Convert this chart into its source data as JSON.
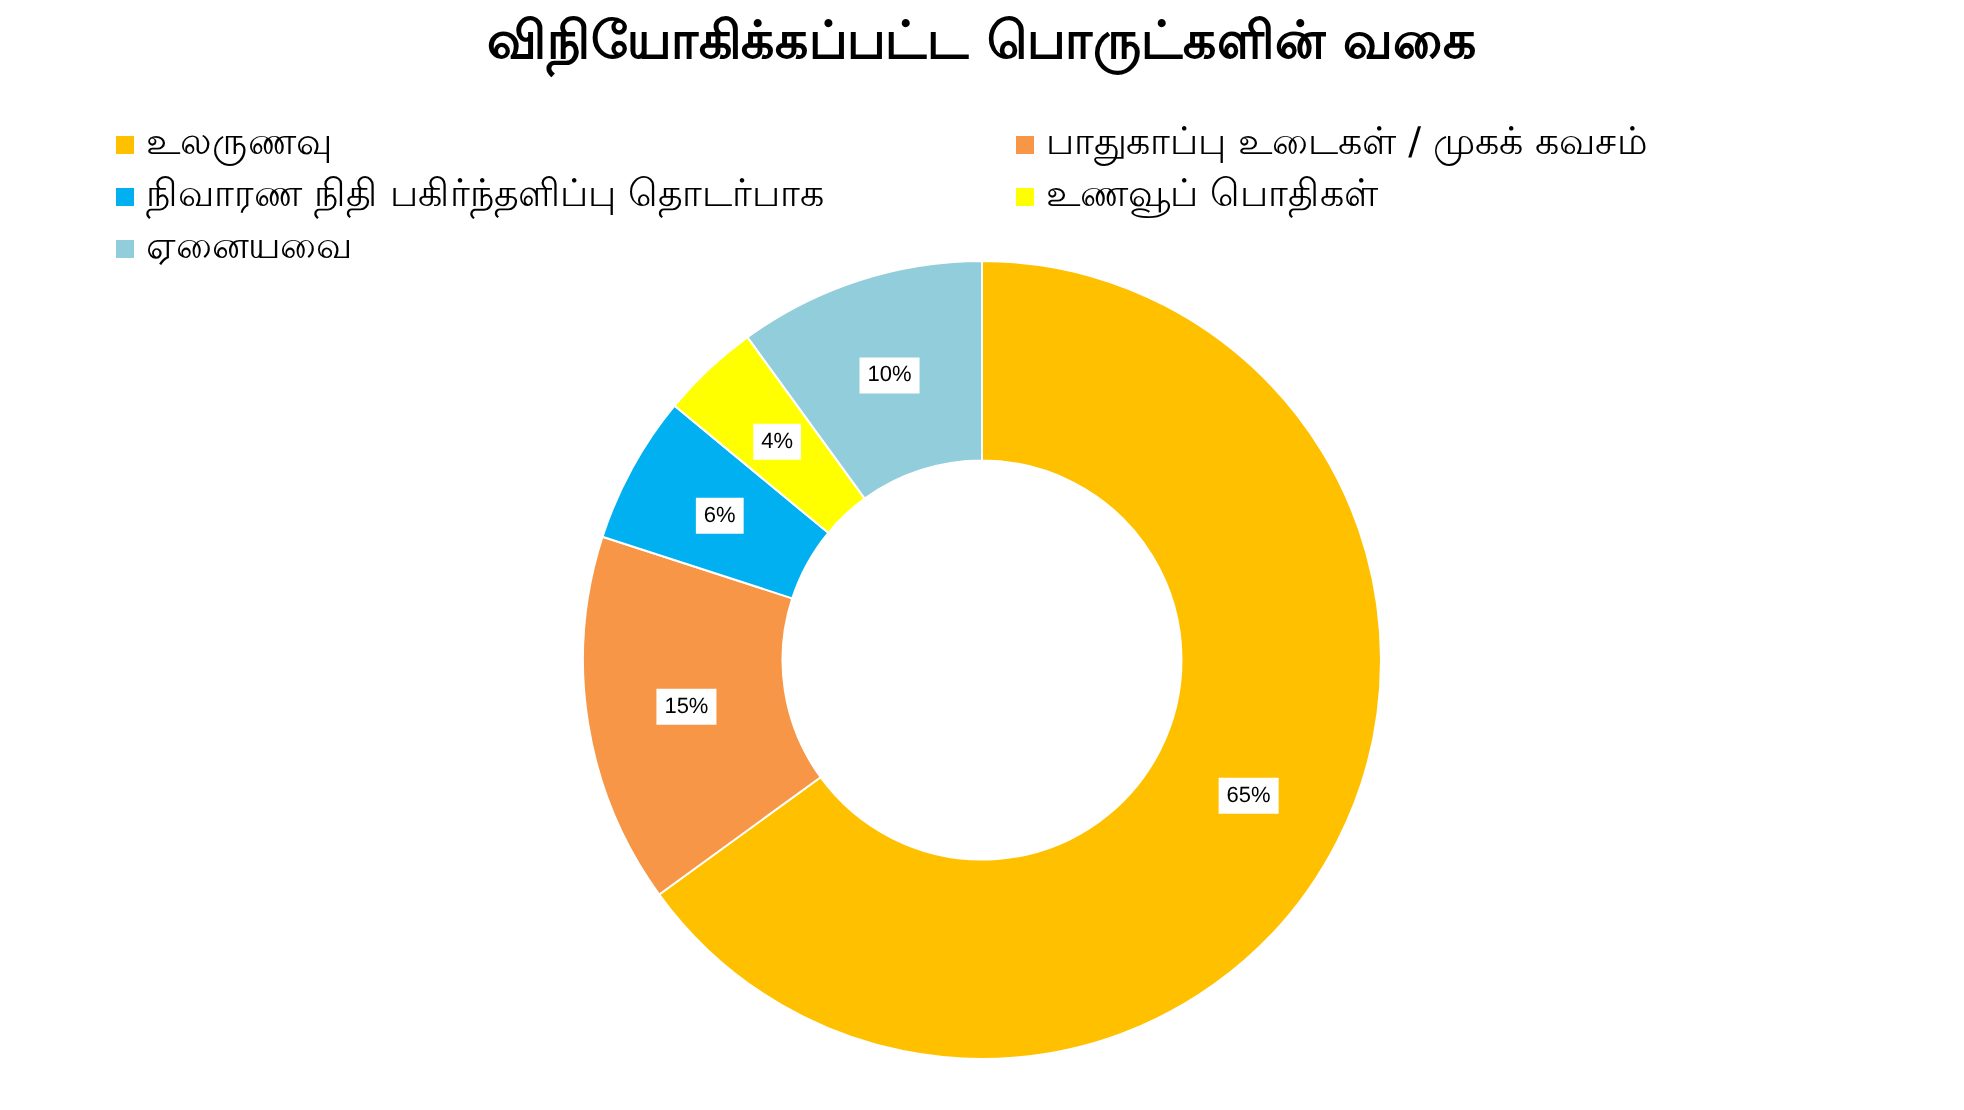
{
  "chart_data": {
    "type": "donut",
    "title": "விநியோகிக்கப்பட்ட பொருட்களின் வகை",
    "categories": [
      "உலருணவு",
      "பாதுகாப்பு உடைகள் / முகக் கவசம்",
      "நிவாரண நிதி பகிர்ந்தளிப்பு தொடர்பாக",
      "உணவூப் பொதிகள்",
      "ஏனையவை"
    ],
    "values": [
      65,
      15,
      6,
      4,
      10
    ],
    "colors": [
      "#ffc000",
      "#f79646",
      "#00b0f0",
      "#ffff00",
      "#92cddc"
    ],
    "value_labels": [
      "65%",
      "15%",
      "6%",
      "4%",
      "10%"
    ],
    "legend": "top"
  }
}
